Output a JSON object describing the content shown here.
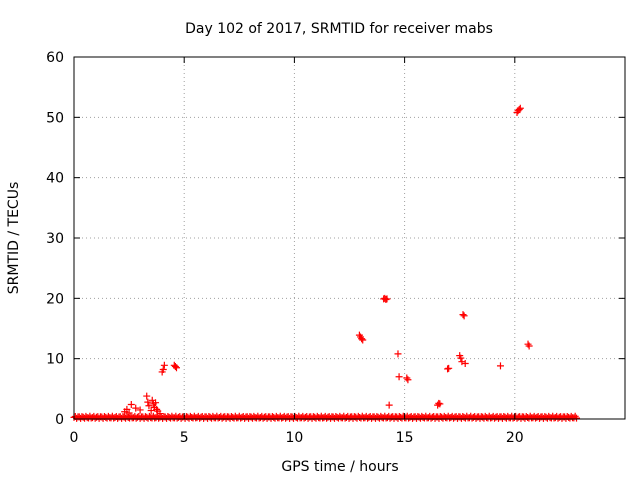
{
  "chart_data": {
    "type": "scatter",
    "title": "Day 102 of 2017, SRMTID for receiver mabs",
    "xlabel": "GPS time / hours",
    "ylabel": "SRMTID / TECUs",
    "xlim": [
      0,
      25
    ],
    "ylim": [
      0,
      60
    ],
    "xticks": [
      0,
      5,
      10,
      15,
      20
    ],
    "yticks": [
      0,
      10,
      20,
      30,
      40,
      50,
      60
    ],
    "xtick_labels": [
      "0",
      "5",
      "10",
      "15",
      "20"
    ],
    "ytick_labels": [
      "0",
      "10",
      "20",
      "30",
      "40",
      "50",
      "60"
    ],
    "grid": true,
    "marker": "+",
    "color": "#ff0000",
    "baseline": {
      "x_start": 0.0,
      "x_end": 22.8,
      "y": 0.1,
      "label": "dense near-zero points"
    },
    "series": [
      {
        "name": "SRMTID",
        "points": [
          [
            2.3,
            1.2
          ],
          [
            2.4,
            1.6
          ],
          [
            2.5,
            1.0
          ],
          [
            2.6,
            2.4
          ],
          [
            2.8,
            1.8
          ],
          [
            3.0,
            1.5
          ],
          [
            3.3,
            3.8
          ],
          [
            3.35,
            2.8
          ],
          [
            3.4,
            2.2
          ],
          [
            3.5,
            1.4
          ],
          [
            3.55,
            3.1
          ],
          [
            3.6,
            2.5
          ],
          [
            3.65,
            1.9
          ],
          [
            3.7,
            2.7
          ],
          [
            3.75,
            1.6
          ],
          [
            3.8,
            1.3
          ],
          [
            3.9,
            0.9
          ],
          [
            4.0,
            7.8
          ],
          [
            4.05,
            8.2
          ],
          [
            4.1,
            8.9
          ],
          [
            4.55,
            8.9
          ],
          [
            4.6,
            8.7
          ],
          [
            4.65,
            8.5
          ],
          [
            12.95,
            13.9
          ],
          [
            13.0,
            13.6
          ],
          [
            13.05,
            13.3
          ],
          [
            13.1,
            13.1
          ],
          [
            14.05,
            19.9
          ],
          [
            14.1,
            20.0
          ],
          [
            14.15,
            19.8
          ],
          [
            14.2,
            19.9
          ],
          [
            14.3,
            2.3
          ],
          [
            14.7,
            10.8
          ],
          [
            14.75,
            7.0
          ],
          [
            15.1,
            6.8
          ],
          [
            15.15,
            6.5
          ],
          [
            16.5,
            2.3
          ],
          [
            16.55,
            2.6
          ],
          [
            16.6,
            2.5
          ],
          [
            16.95,
            8.3
          ],
          [
            17.0,
            8.4
          ],
          [
            17.5,
            10.5
          ],
          [
            17.55,
            10.1
          ],
          [
            17.6,
            9.5
          ],
          [
            17.65,
            17.3
          ],
          [
            17.7,
            17.1
          ],
          [
            17.75,
            9.2
          ],
          [
            19.35,
            8.8
          ],
          [
            20.1,
            50.8
          ],
          [
            20.15,
            51.1
          ],
          [
            20.2,
            51.3
          ],
          [
            20.25,
            51.5
          ],
          [
            20.6,
            12.4
          ],
          [
            20.65,
            12.1
          ]
        ]
      }
    ]
  }
}
